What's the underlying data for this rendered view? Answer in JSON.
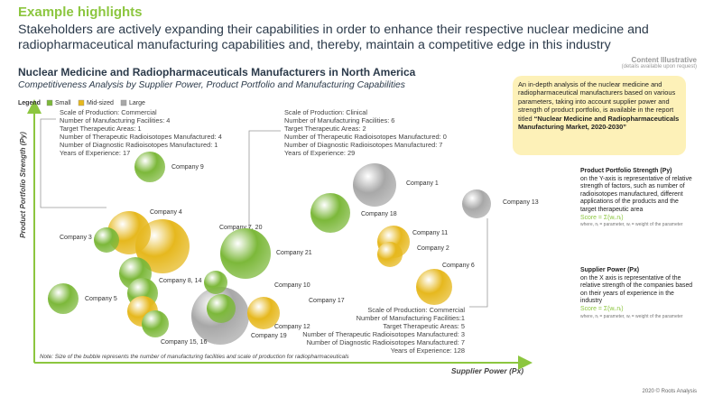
{
  "header": {
    "title": "Example highlights",
    "subtitle": "Stakeholders are actively expanding their capabilities in order to enhance their respective nuclear medicine and radiopharmaceutical manufacturing capabilities and, thereby, maintain a competitive edge in this industry"
  },
  "illustrative": {
    "title": "Content Illustrative",
    "note": "(details available upon request)"
  },
  "chart": {
    "title": "Nuclear Medicine and Radiopharmaceuticals Manufacturers in North America",
    "subtitle": "Competitiveness Analysis by Supplier Power, Product Portfolio and Manufacturing Capabilities",
    "legend": {
      "label": "Legend",
      "items": [
        {
          "label": "Small",
          "color": "#7cb83a"
        },
        {
          "label": "Mid-sized",
          "color": "#e6b81e"
        },
        {
          "label": "Large",
          "color": "#a8a8a8"
        }
      ]
    },
    "y_axis_label": "Product Portfolio Strength (Py)",
    "x_axis_label": "Supplier Power (Px)",
    "note": "Note: Size of the bubble represents the number of manufacturing facilities and scale of production for radiopharmaceuticals",
    "callouts": [
      {
        "lines": [
          "Scale of Production: Commercial",
          "Number of Manufacturing Facilities: 4",
          "Target Therapeutic Areas: 1",
          "Number of Therapeutic Radioisotopes Manufactured: 4",
          "Number of Diagnostic Radioisotopes Manufactured: 1",
          "Years of Experience: 17"
        ]
      },
      {
        "lines": [
          "Scale of Production: Clinical",
          "Number of Manufacturing Facilities: 6",
          "Target Therapeutic Areas: 2",
          "Number of Therapeutic Radioisotopes Manufactured: 0",
          "Number of Diagnostic Radioisotopes Manufactured: 7",
          "Years of Experience: 29"
        ]
      },
      {
        "lines": [
          "Scale of Production: Commercial",
          "Number of Manufacturing Facilities:1",
          "Target Therapeutic Areas: 5",
          "Number of Therapeutic Radioisotopes Manufactured: 3",
          "Number of Diagnostic Radioisotopes Manufactured: 7",
          "Years of Experience: 128"
        ]
      }
    ],
    "bubbles": [
      {
        "label": "Company 15, 16",
        "color": "#a8a8a8"
      },
      {
        "label": "Company 7, 20",
        "color": "#e6b81e"
      },
      {
        "label": "Company 4",
        "color": "#e6b81e"
      },
      {
        "label": "Company 21",
        "color": "#7cb83a"
      },
      {
        "label": "Company 1",
        "color": "#a8a8a8"
      },
      {
        "label": "Company 18",
        "color": "#7cb83a"
      },
      {
        "label": "Company 9",
        "color": "#7cb83a"
      },
      {
        "label": "Company 13",
        "color": "#a8a8a8"
      },
      {
        "label": "Company 3",
        "color": "#7cb83a"
      },
      {
        "label": "Company 11",
        "color": "#e6b81e"
      },
      {
        "label": "Company 2",
        "color": "#e6b81e"
      },
      {
        "label": "Company 6",
        "color": "#e6b81e"
      },
      {
        "label": "Company 8, 14",
        "color": "#7cb83a"
      },
      {
        "label": "Company 10",
        "color": "#7cb83a"
      },
      {
        "label": null,
        "color": "#7cb83a"
      },
      {
        "label": "Company 5",
        "color": "#7cb83a"
      },
      {
        "label": "Company 17",
        "color": "#e6b81e"
      },
      {
        "label": null,
        "color": "#e6b81e"
      },
      {
        "label": "Company 19",
        "color": "#7cb83a"
      },
      {
        "label": "Company 12",
        "color": "#7cb83a"
      }
    ]
  },
  "sidebar": {
    "highlight": {
      "text": "An in-depth analysis of the nuclear medicine and radiopharmaceutical manufacturers based on various parameters, taking into account supplier power and strength of product portfolio, is available in the report titled ",
      "bold": "“Nuclear Medicine and Radiopharmaceuticals Manufacturing Market, 2020-2030”"
    },
    "sections": [
      {
        "heading": "Product Portfolio Strength (Py)",
        "text": "on the Y-axis is representative of relative strength of factors, such as number of radioisotopes manufactured, different applications of the products and the target therapeutic area",
        "formula": "Score = Σ(wᵢ.nᵢ)",
        "formula_note": "where, nᵢ = parameter, wᵢ = weight of the parameter"
      },
      {
        "heading": "Supplier Power (Px)",
        "text": "on the X axis is representative of the relative strength of the companies based on their years of experience in the industry",
        "formula": "Score = Σ(wᵢ.nᵢ)",
        "formula_note": "where, nᵢ = parameter, wᵢ = weight of the parameter"
      }
    ]
  },
  "footer": "2020 © Roots Analysis"
}
